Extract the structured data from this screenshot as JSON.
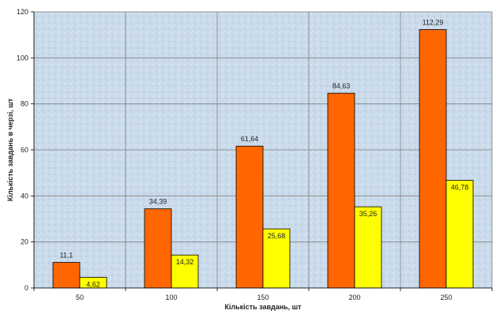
{
  "chart_data": {
    "type": "bar",
    "categories": [
      "50",
      "100",
      "150",
      "200",
      "250"
    ],
    "series": [
      {
        "values": [
          11.1,
          34.39,
          61.64,
          84.63,
          112.29
        ],
        "labels": [
          "11,1",
          "34,39",
          "61,64",
          "84,63",
          "112,29"
        ]
      },
      {
        "values": [
          4.62,
          14.32,
          25.68,
          35.26,
          46.78
        ],
        "labels": [
          "4,62",
          "14,32",
          "25,68",
          "35,26",
          "46,78"
        ]
      }
    ],
    "xlabel": "Кількість завдань, шт",
    "ylabel": "Кількість завдань в черзі, шт",
    "ylim": [
      0,
      120
    ],
    "yticks": [
      0,
      20,
      40,
      60,
      80,
      100,
      120
    ],
    "grid": true,
    "legend": "none"
  },
  "colors": {
    "series": [
      "#ff6600",
      "#ffff00"
    ],
    "plot_background": "#c9daea"
  }
}
